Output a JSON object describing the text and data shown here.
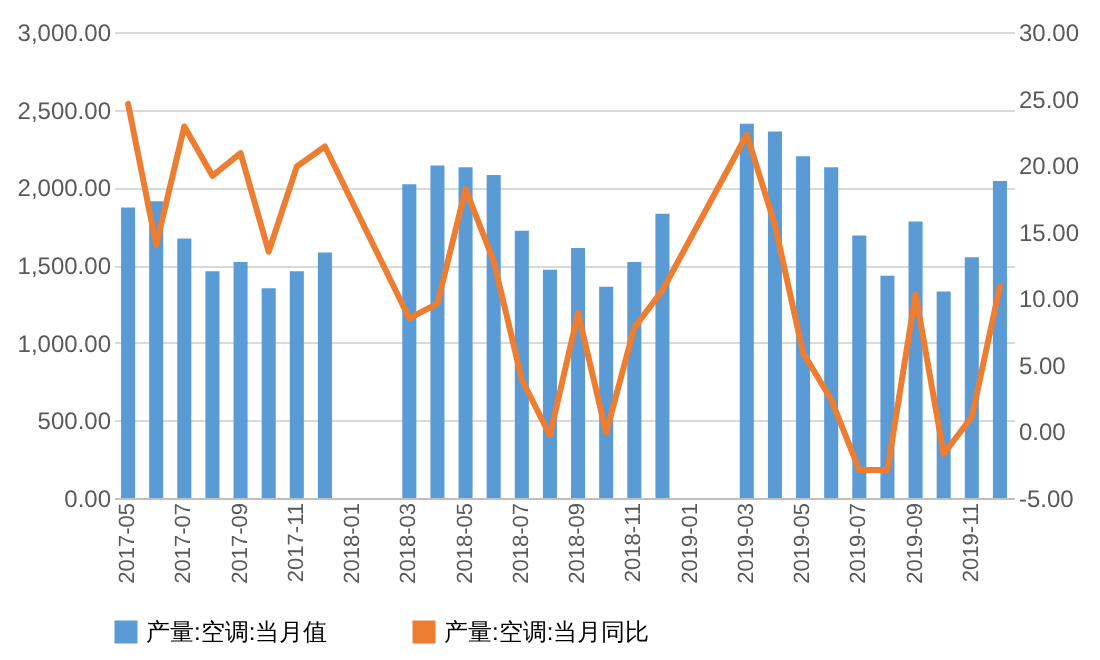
{
  "chart_data": {
    "type": "bar",
    "categories": [
      "2017-05",
      null,
      "2017-07",
      null,
      "2017-09",
      null,
      "2017-11",
      null,
      "2018-01",
      null,
      "2018-03",
      null,
      "2018-05",
      null,
      "2018-07",
      null,
      "2018-09",
      null,
      "2018-11",
      null,
      "2019-01",
      null,
      "2019-03",
      null,
      "2019-05",
      null,
      "2019-07",
      null,
      "2019-09",
      null,
      "2019-11",
      null
    ],
    "series": [
      {
        "name": "产量:空调:当月值",
        "color": "#5b9bd5",
        "values": [
          1870,
          1910,
          1670,
          1460,
          1520,
          1350,
          1460,
          1580,
          null,
          null,
          2020,
          2140,
          2130,
          2080,
          1720,
          1470,
          1610,
          1360,
          1520,
          1830,
          null,
          null,
          2410,
          2360,
          2200,
          2130,
          1690,
          1430,
          1780,
          1330,
          1550,
          2040
        ]
      },
      {
        "name": "产量:空调:当月同比",
        "type": "line",
        "axis": "y2",
        "color": "#ed7d31",
        "values": [
          24.6,
          14.0,
          22.9,
          19.2,
          20.9,
          13.5,
          19.9,
          21.4,
          null,
          null,
          8.5,
          9.6,
          18.2,
          12.8,
          3.9,
          -0.3,
          8.9,
          -0.1,
          7.8,
          10.6,
          null,
          null,
          22.3,
          15.5,
          5.9,
          2.4,
          -2.9,
          -2.9,
          10.3,
          -1.7,
          1.1,
          10.9
        ]
      }
    ],
    "ylim": [
      0,
      3000
    ],
    "yticks": [
      {
        "value": 0,
        "label": "0.00"
      },
      {
        "value": 500,
        "label": "500.00"
      },
      {
        "value": 1000,
        "label": "1,000.00"
      },
      {
        "value": 1500,
        "label": "1,500.00"
      },
      {
        "value": 2000,
        "label": "2,000.00"
      },
      {
        "value": 2500,
        "label": "2,500.00"
      },
      {
        "value": 3000,
        "label": "3,000.00"
      }
    ],
    "y2lim": [
      -5,
      30
    ],
    "y2ticks": [
      {
        "value": -5,
        "label": "-5.00"
      },
      {
        "value": 0,
        "label": "0.00"
      },
      {
        "value": 5,
        "label": "5.00"
      },
      {
        "value": 10,
        "label": "10.00"
      },
      {
        "value": 15,
        "label": "15.00"
      },
      {
        "value": 20,
        "label": "20.00"
      },
      {
        "value": 25,
        "label": "25.00"
      },
      {
        "value": 30,
        "label": "30.00"
      }
    ],
    "grid": "y",
    "legend": "bottom",
    "marker": "none",
    "line_style": "solid"
  }
}
